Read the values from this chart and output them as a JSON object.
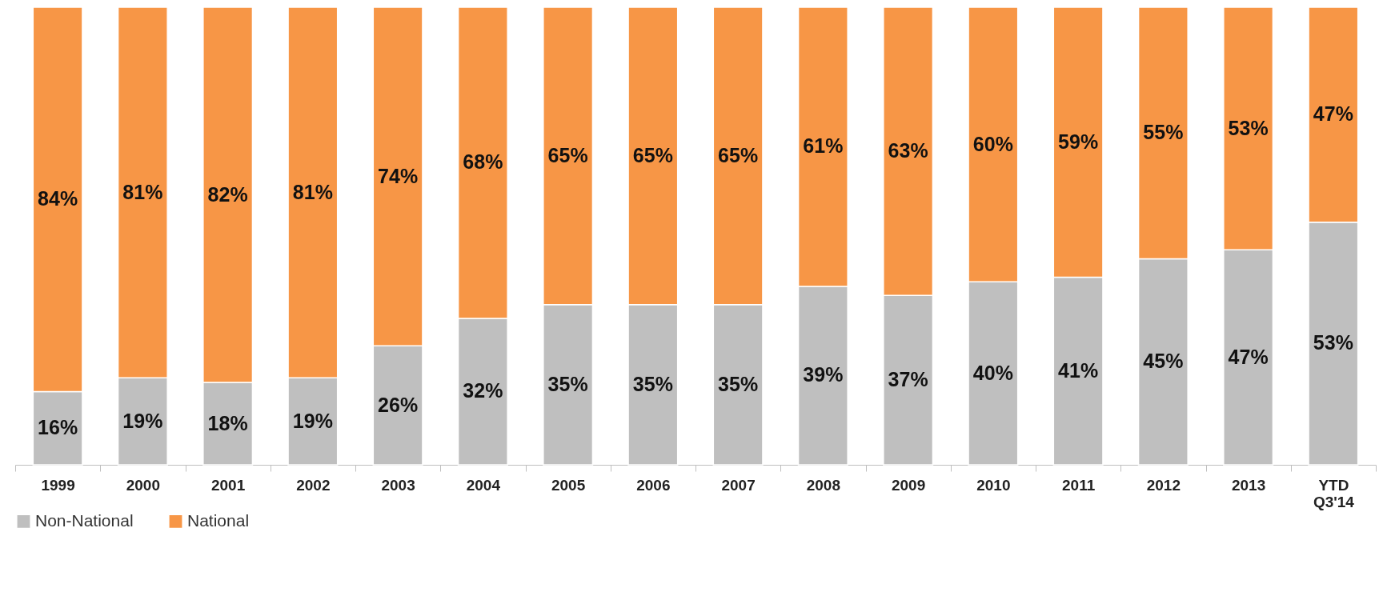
{
  "chart_data": {
    "type": "bar",
    "stacked": true,
    "legend": "bottom",
    "categories": [
      "1999",
      "2000",
      "2001",
      "2002",
      "2003",
      "2004",
      "2005",
      "2006",
      "2007",
      "2008",
      "2009",
      "2010",
      "2011",
      "2012",
      "2013",
      "YTD Q3'14"
    ],
    "series": [
      {
        "name": "Non-National",
        "color": "#bfbfbf",
        "values": [
          16,
          19,
          18,
          19,
          26,
          32,
          35,
          35,
          35,
          39,
          37,
          40,
          41,
          45,
          47,
          53
        ],
        "value_labels": [
          "16%",
          "19%",
          "18%",
          "19%",
          "26%",
          "32%",
          "35%",
          "35%",
          "35%",
          "39%",
          "37%",
          "40%",
          "41%",
          "45%",
          "47%",
          "53%"
        ]
      },
      {
        "name": "National",
        "color": "#f79646",
        "values": [
          84,
          81,
          82,
          81,
          74,
          68,
          65,
          65,
          65,
          61,
          63,
          60,
          59,
          55,
          53,
          47
        ],
        "value_labels": [
          "84%",
          "81%",
          "82%",
          "81%",
          "74%",
          "68%",
          "65%",
          "65%",
          "65%",
          "61%",
          "63%",
          "60%",
          "59%",
          "55%",
          "53%",
          "47%"
        ]
      }
    ]
  }
}
